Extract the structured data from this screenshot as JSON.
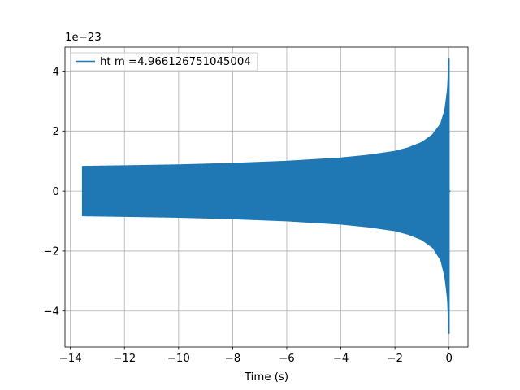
{
  "chart_data": {
    "type": "line",
    "title": "",
    "xlabel": "Time (s)",
    "ylabel": "",
    "y_offset_label": "1e−23",
    "xlim": [
      -14.2,
      0.7
    ],
    "ylim": [
      -5.2,
      4.8
    ],
    "x_ticks": [
      -14,
      -12,
      -10,
      -8,
      -6,
      -4,
      -2,
      0
    ],
    "x_tick_labels": [
      "−14",
      "−12",
      "−10",
      "−8",
      "−6",
      "−4",
      "−2",
      "0"
    ],
    "y_ticks": [
      -4,
      -2,
      0,
      2,
      4
    ],
    "y_tick_labels": [
      "−4",
      "−2",
      "0",
      "2",
      "4"
    ],
    "grid": true,
    "legend_position": "top-left",
    "series": [
      {
        "name": "ht m =4.966126751045004",
        "color": "#1f77b4",
        "render": "oscillation_envelope",
        "start_time": -13.55,
        "end_time": 0.0,
        "envelope": {
          "t": [
            -13.55,
            -12,
            -10,
            -8,
            -6,
            -4,
            -3,
            -2,
            -1.5,
            -1,
            -0.6,
            -0.3,
            -0.15,
            -0.05,
            0.0
          ],
          "upper": [
            0.82,
            0.84,
            0.87,
            0.92,
            0.99,
            1.1,
            1.19,
            1.32,
            1.44,
            1.62,
            1.88,
            2.25,
            2.7,
            3.4,
            4.4
          ],
          "lower": [
            -0.82,
            -0.84,
            -0.87,
            -0.92,
            -0.99,
            -1.1,
            -1.19,
            -1.32,
            -1.44,
            -1.62,
            -1.88,
            -2.3,
            -2.85,
            -3.6,
            -4.75
          ]
        }
      }
    ]
  }
}
